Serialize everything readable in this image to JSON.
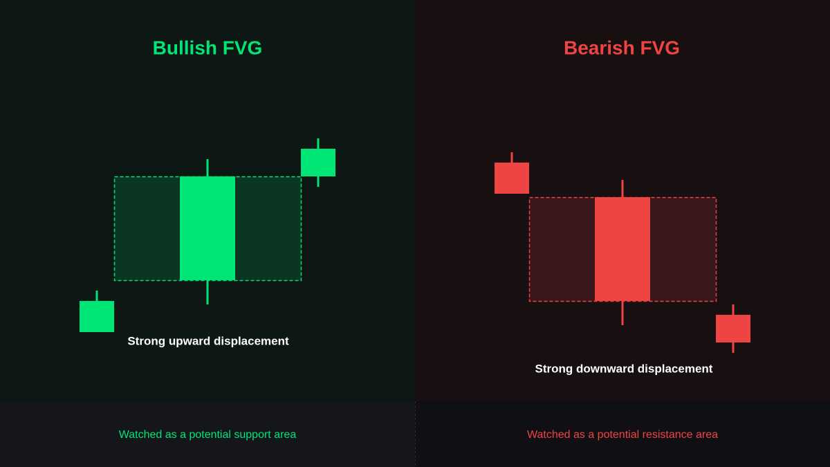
{
  "panels": [
    {
      "title": "Bullish FVG",
      "caption": "Strong upward displacement",
      "footer": "Watched as a potential support area"
    },
    {
      "title": "Bearish FVG",
      "caption": "Strong downward displacement",
      "footer": "Watched as a potential resistance area"
    }
  ]
}
